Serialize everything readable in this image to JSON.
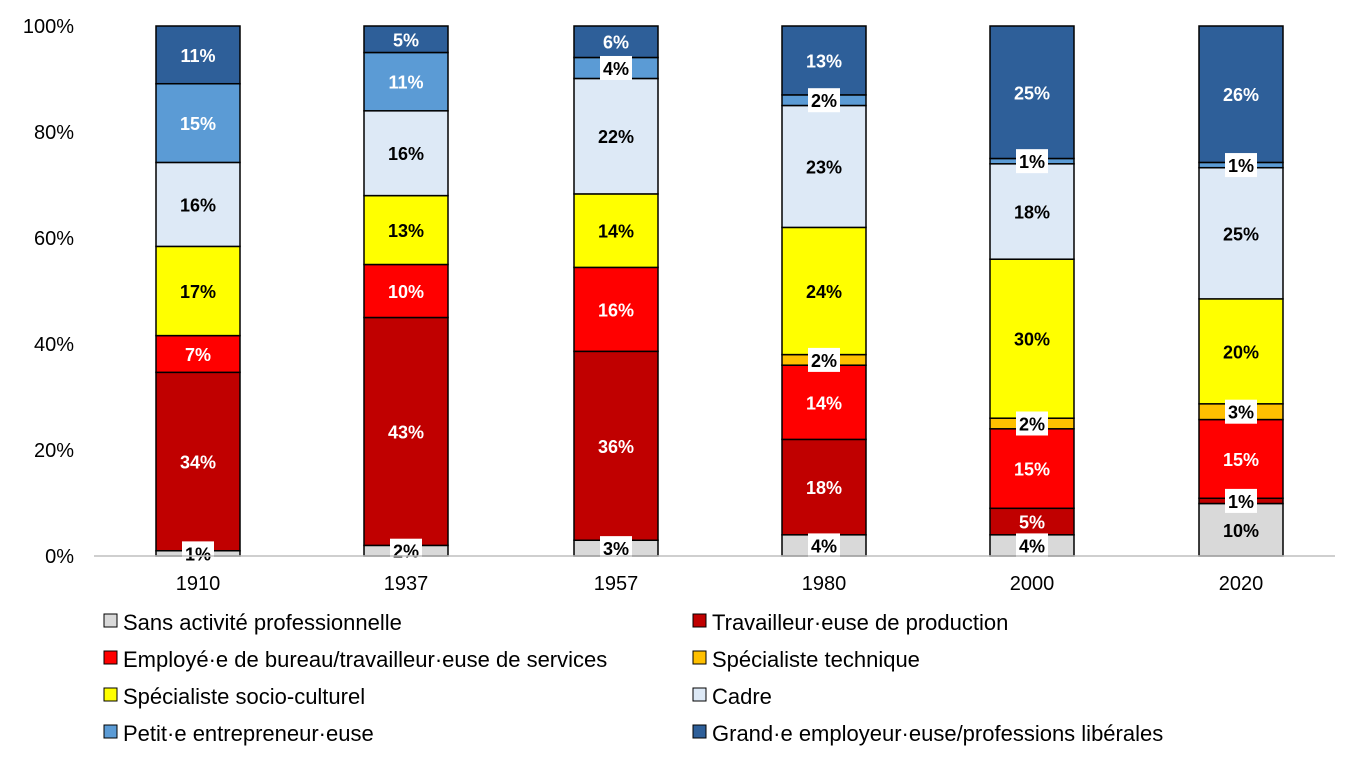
{
  "chart_data": {
    "type": "bar",
    "stacked": true,
    "categories": [
      "1910",
      "1937",
      "1957",
      "1980",
      "2000",
      "2020"
    ],
    "y_tick_labels": [
      "0%",
      "20%",
      "40%",
      "60%",
      "80%",
      "100%"
    ],
    "ylim": [
      0,
      100
    ],
    "legend_position": "bottom",
    "series": [
      {
        "name": "Sans activité professionnelle",
        "color": "#d9d9d9",
        "values": [
          1,
          2,
          3,
          4,
          4,
          10
        ],
        "labels": [
          "1%",
          "2%",
          "3%",
          "4%",
          "4%",
          "10%"
        ]
      },
      {
        "name": "Travailleur·euse de production",
        "color": "#c00000",
        "values": [
          34,
          43,
          36,
          18,
          5,
          1
        ],
        "labels": [
          "34%",
          "43%",
          "36%",
          "18%",
          "5%",
          "1%"
        ]
      },
      {
        "name": "Employé·e de bureau/travailleur·euse de services",
        "color": "#ff0000",
        "values": [
          7,
          10,
          16,
          14,
          15,
          15
        ],
        "labels": [
          "7%",
          "10%",
          "16%",
          "14%",
          "15%",
          "15%"
        ]
      },
      {
        "name": "Spécialiste technique",
        "color": "#ffc000",
        "values": [
          0,
          0,
          0,
          2,
          2,
          3
        ],
        "labels": [
          "",
          "",
          "",
          "2%",
          "2%",
          "3%"
        ]
      },
      {
        "name": "Spécialiste socio-culturel",
        "color": "#ffff00",
        "values": [
          17,
          13,
          14,
          24,
          30,
          20
        ],
        "labels": [
          "17%",
          "13%",
          "14%",
          "24%",
          "30%",
          "20%"
        ]
      },
      {
        "name": "Cadre",
        "color": "#dde9f6",
        "values": [
          16,
          16,
          22,
          23,
          18,
          25
        ],
        "labels": [
          "16%",
          "16%",
          "22%",
          "23%",
          "18%",
          "25%"
        ]
      },
      {
        "name": "Petit·e entrepreneur·euse",
        "color": "#5b9bd5",
        "values": [
          15,
          11,
          4,
          2,
          1,
          1
        ],
        "labels": [
          "15%",
          "11%",
          "4%",
          "2%",
          "1%",
          "1%"
        ]
      },
      {
        "name": "Grand·e employeur·euse/professions libérales",
        "color": "#2e5f99",
        "values": [
          11,
          5,
          6,
          13,
          25,
          26
        ],
        "labels": [
          "11%",
          "5%",
          "6%",
          "13%",
          "25%",
          "26%"
        ]
      }
    ]
  }
}
